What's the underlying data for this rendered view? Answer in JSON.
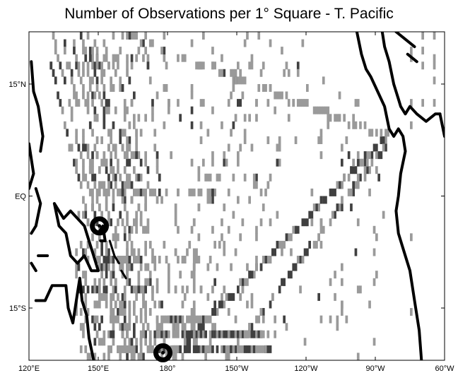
{
  "title": "Number of Observations per 1° Square - T. Pacific",
  "x_ticks": [
    "120°E",
    "150°E",
    "180°",
    "150°W",
    "120°W",
    "90°W",
    "60°W"
  ],
  "y_ticks": [
    "15°N",
    "EQ",
    "15°S"
  ],
  "x_tick_lon": [
    120,
    150,
    180,
    210,
    240,
    270,
    300
  ],
  "y_tick_lat": [
    15,
    0,
    -15
  ],
  "extent": {
    "lon": [
      120,
      300
    ],
    "lat": [
      -22,
      22
    ]
  },
  "colors": {
    "light": "#9a9a9a",
    "dark": "#404040",
    "coast": "#000000"
  },
  "markers": [
    {
      "name": "observation-site-marker",
      "lon": 150.5,
      "lat": -4
    },
    {
      "name": "observation-site-marker",
      "lon": 178,
      "lat": -21
    }
  ]
}
